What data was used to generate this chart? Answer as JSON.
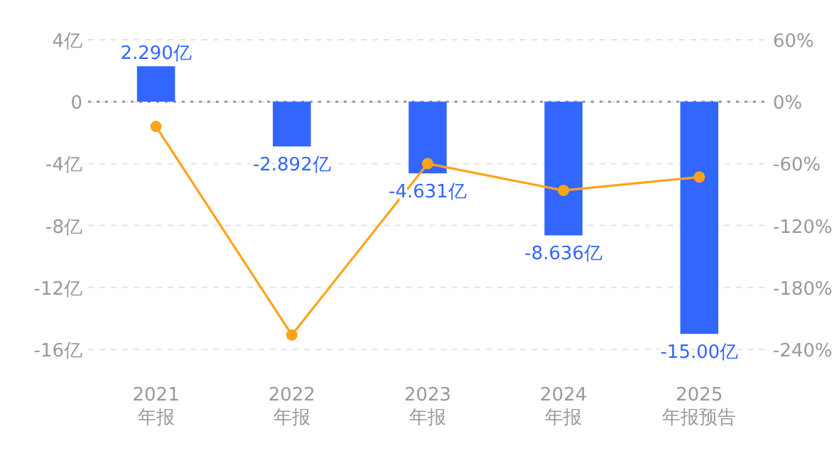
{
  "chart_data": {
    "type": "bar",
    "categories": [
      "2021\n年报",
      "2022\n年报",
      "2023\n年报",
      "2024\n年报",
      "2025\n年报预告"
    ],
    "series": [
      {
        "color": "#3366ff",
        "values": [
          2.29,
          -2.892,
          -4.631,
          -8.636,
          -15.0
        ],
        "value_labels": [
          "2.290亿",
          "-2.892亿",
          "-4.631亿",
          "-8.636亿",
          "-15.00亿"
        ]
      },
      {
        "type": "line",
        "axis": "y2",
        "color": "#ffa31a",
        "marker": "circle",
        "values": [
          -24,
          -226,
          -60,
          -86,
          -73
        ]
      }
    ],
    "ylim": [
      -16,
      4
    ],
    "yticks": [
      {
        "value": 4,
        "label": "4亿"
      },
      {
        "value": 0,
        "label": "0"
      },
      {
        "value": -4,
        "label": "-4亿"
      },
      {
        "value": -8,
        "label": "-8亿"
      },
      {
        "value": -12,
        "label": "-12亿"
      },
      {
        "value": -16,
        "label": "-16亿"
      }
    ],
    "y2lim": [
      -240,
      60
    ],
    "y2ticks": [
      {
        "value": 60,
        "label": "60%"
      },
      {
        "value": 0,
        "label": "0%"
      },
      {
        "value": -60,
        "label": "-60%"
      },
      {
        "value": -120,
        "label": "-120%"
      },
      {
        "value": -180,
        "label": "-180%"
      },
      {
        "value": -240,
        "label": "-240%"
      }
    ],
    "ref_lines": [
      {
        "axis": "y",
        "value": 0,
        "color": "#999999",
        "line_style": "dotted"
      }
    ],
    "grid": "y"
  }
}
